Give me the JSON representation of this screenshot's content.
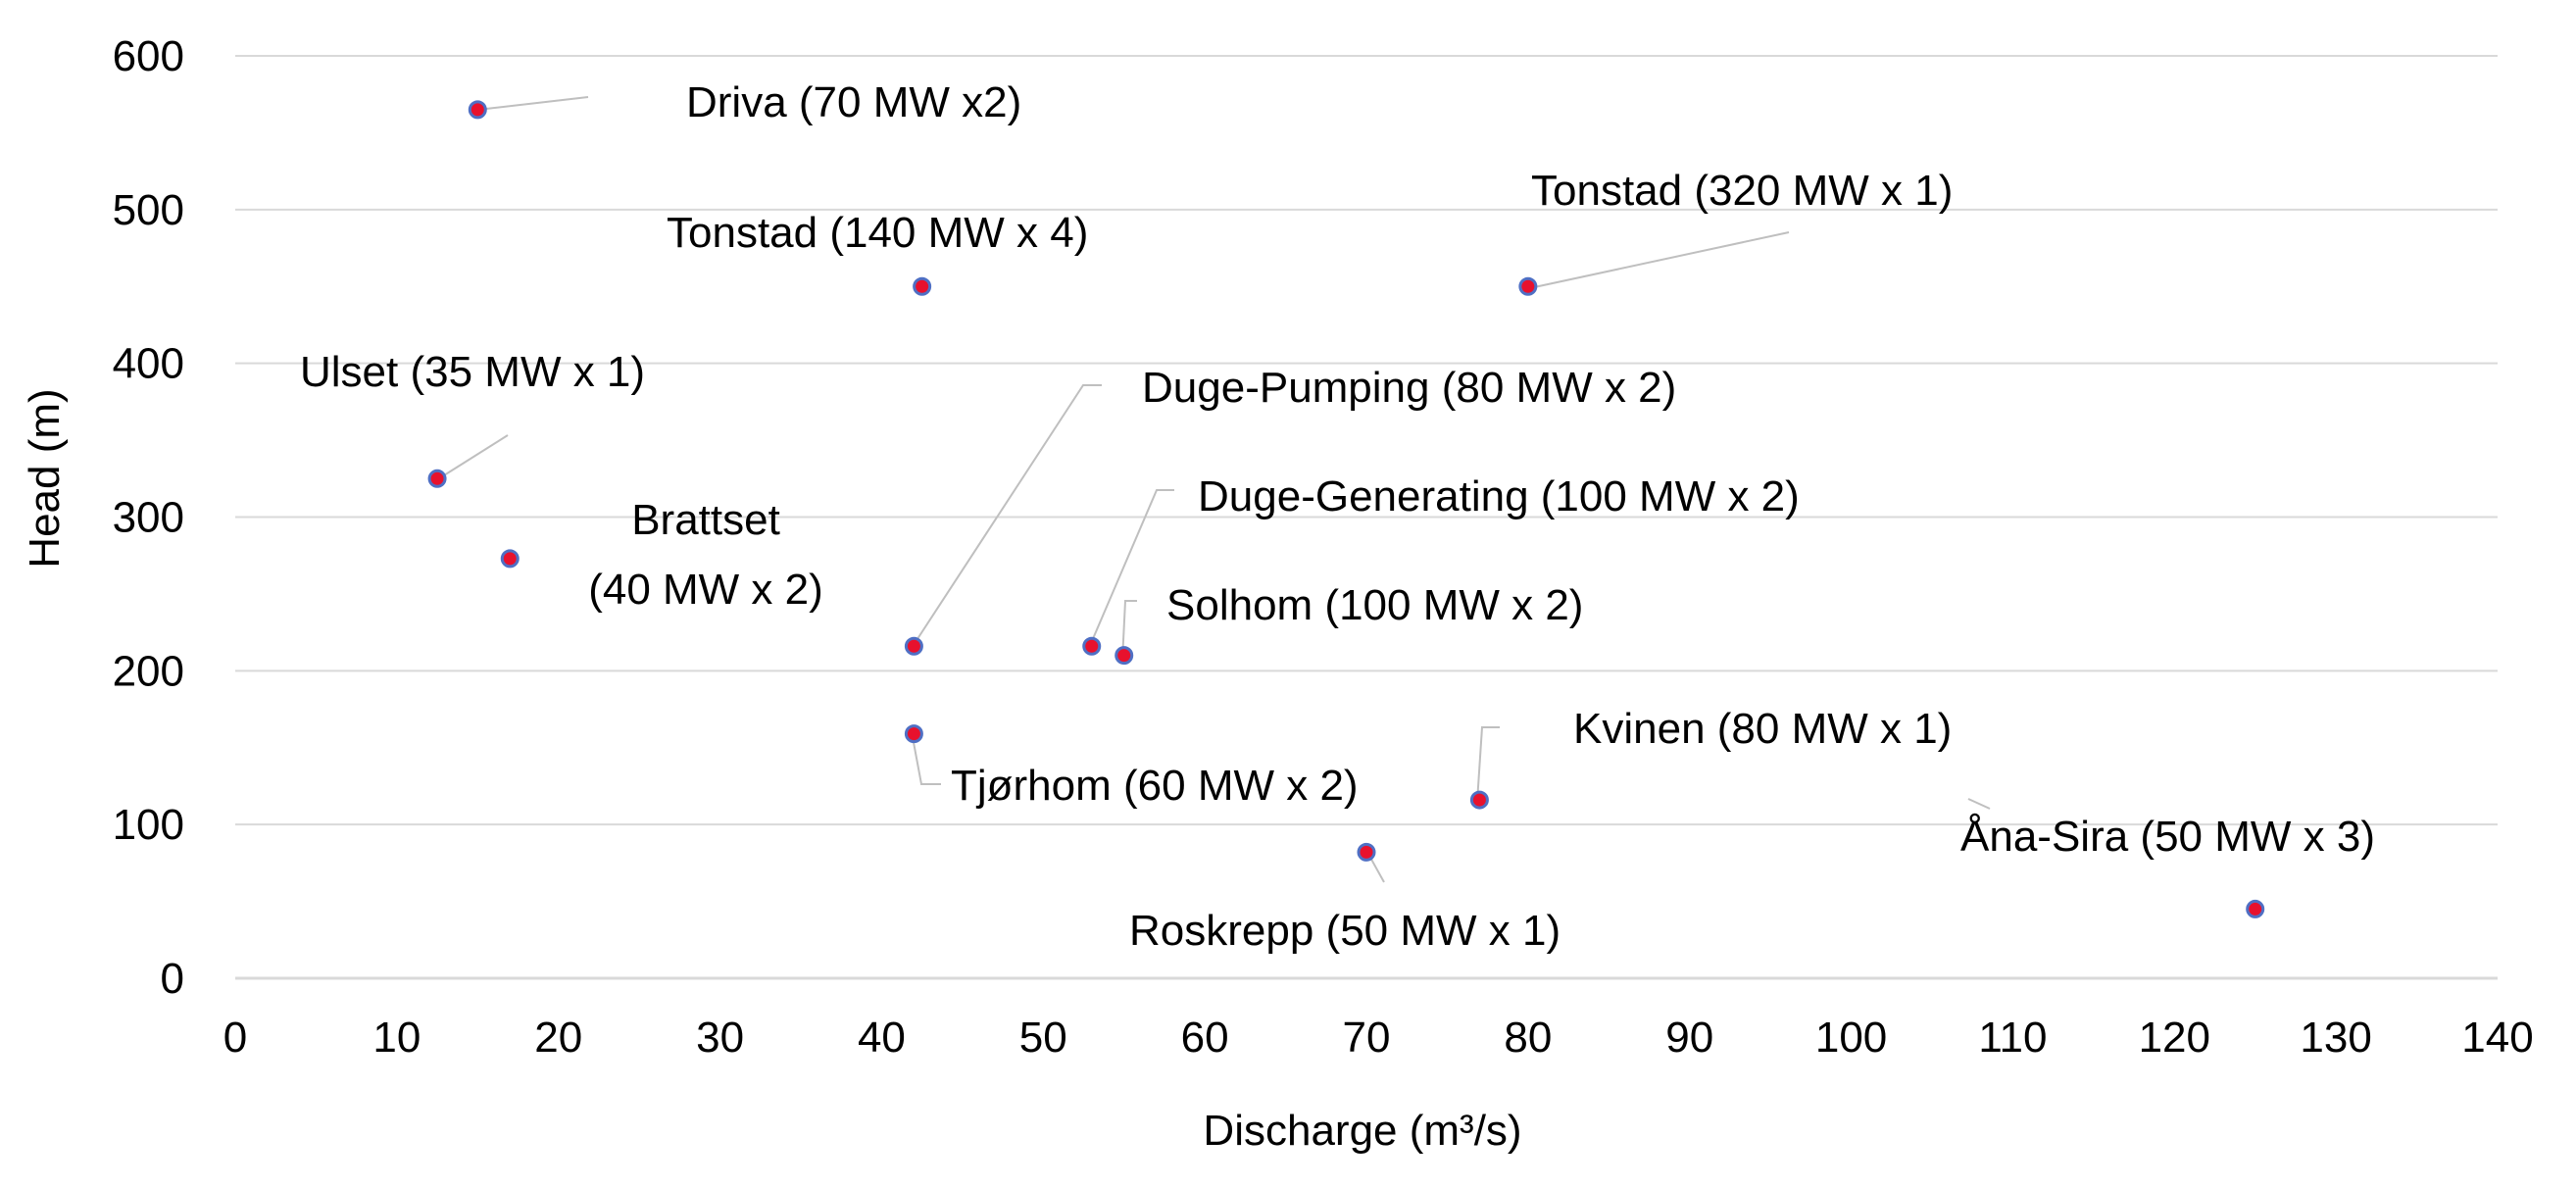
{
  "chart_data": {
    "type": "scatter",
    "xlabel": "Discharge (m³/s)",
    "ylabel": "Head (m)",
    "xlim": [
      0,
      140
    ],
    "ylim": [
      0,
      600
    ],
    "xticks": [
      0,
      10,
      20,
      30,
      40,
      50,
      60,
      70,
      80,
      90,
      100,
      110,
      120,
      130,
      140
    ],
    "yticks": [
      0,
      100,
      200,
      300,
      400,
      500,
      600
    ],
    "grid": "horizontal",
    "marker_color": "#e8112d",
    "marker_edge_color": "#4f6fc4",
    "points": [
      {
        "name": "Driva",
        "x": 15,
        "y": 565,
        "label": [
          "Driva (70 MW x2)"
        ]
      },
      {
        "name": "Tonstad 140",
        "x": 42.5,
        "y": 450,
        "label": [
          "Tonstad  (140 MW x 4)"
        ]
      },
      {
        "name": "Tonstad 320",
        "x": 80,
        "y": 450,
        "label": [
          "Tonstad  (320 MW x 1)"
        ]
      },
      {
        "name": "Ulset",
        "x": 12.5,
        "y": 325,
        "label": [
          "Ulset (35 MW x 1)"
        ]
      },
      {
        "name": "Brattset",
        "x": 17,
        "y": 273,
        "label": [
          "Brattset",
          "(40 MW x 2)"
        ]
      },
      {
        "name": "Duge-Pumping",
        "x": 42,
        "y": 216,
        "label": [
          "Duge-Pumping (80 MW x 2)"
        ]
      },
      {
        "name": "Duge-Generating",
        "x": 53,
        "y": 216,
        "label": [
          "Duge-Generating (100 MW x 2)"
        ]
      },
      {
        "name": "Solhom",
        "x": 55,
        "y": 210,
        "label": [
          "Solhom (100 MW x 2)"
        ]
      },
      {
        "name": "Tjørhom",
        "x": 42,
        "y": 159,
        "label": [
          "Tjørhom (60 MW x 2)"
        ]
      },
      {
        "name": "Kvinen",
        "x": 77,
        "y": 116,
        "label": [
          "Kvinen (80 MW x 1)"
        ]
      },
      {
        "name": "Roskrepp",
        "x": 70,
        "y": 82,
        "label": [
          "Roskrepp (50 MW x 1)"
        ]
      },
      {
        "name": "Åna-Sira",
        "x": 125,
        "y": 45,
        "label": [
          "Åna-Sira (50 MW x 3)"
        ]
      }
    ]
  }
}
